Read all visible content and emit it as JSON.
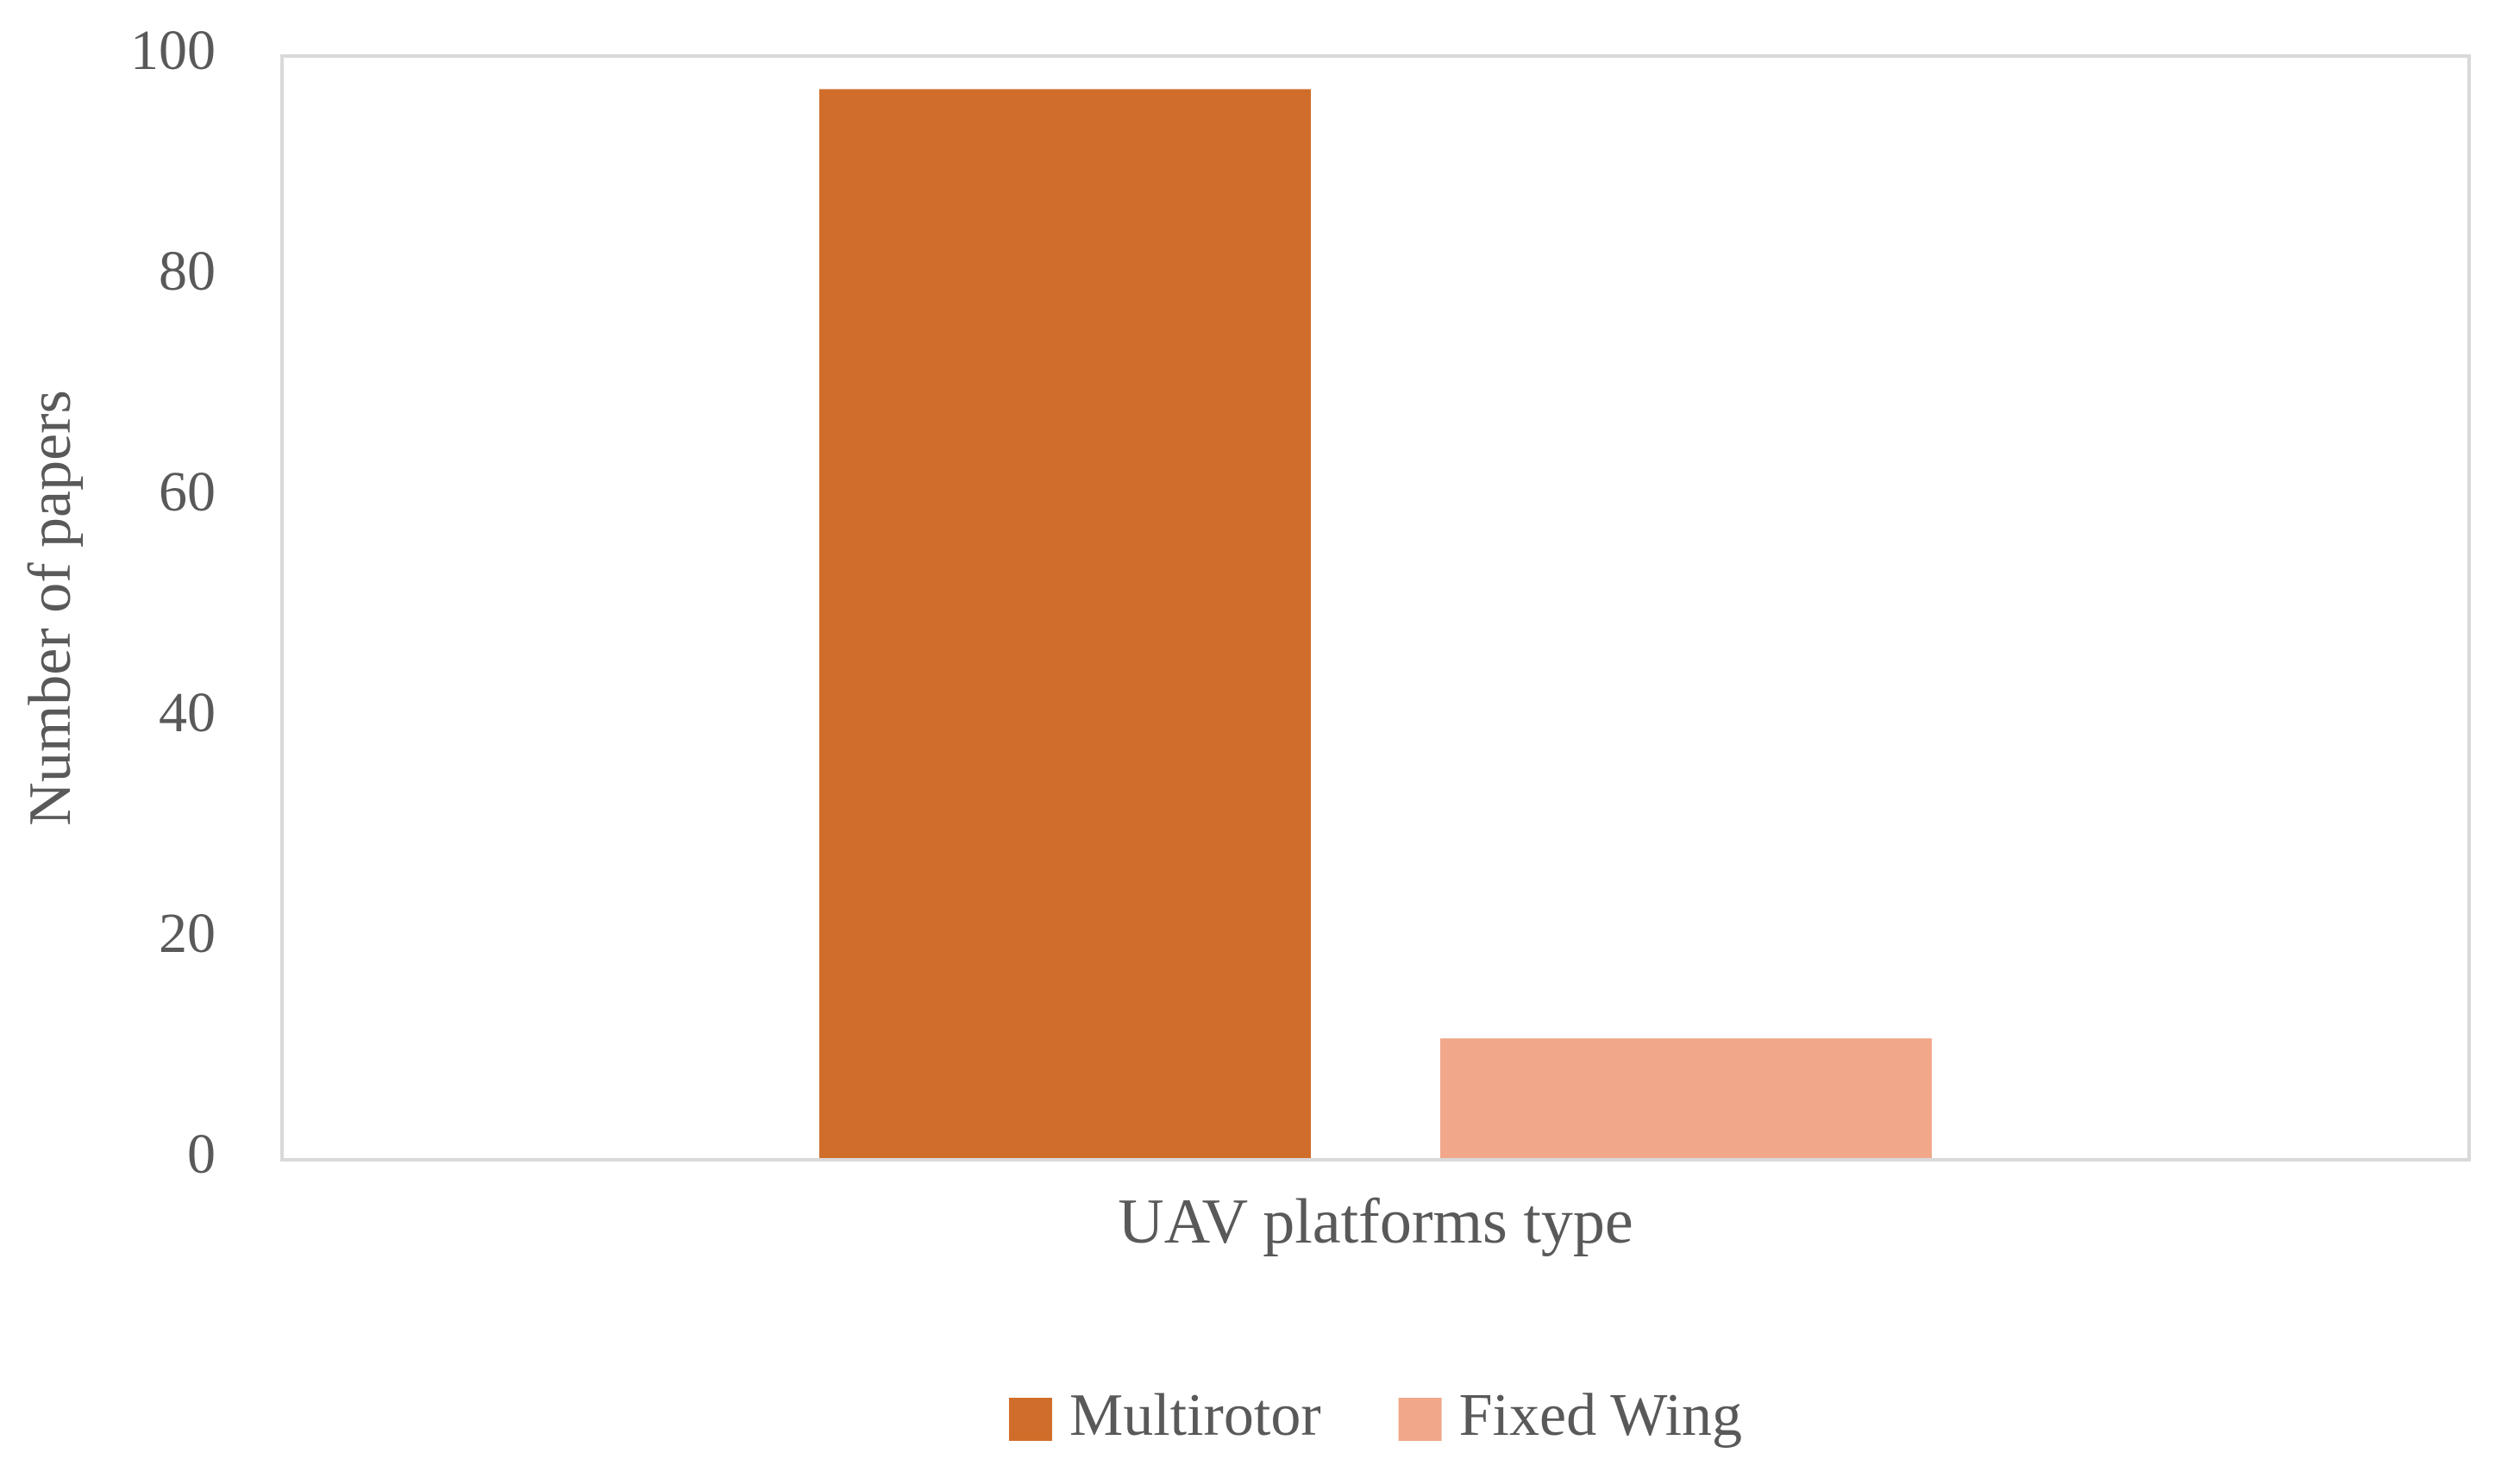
{
  "chart_data": {
    "type": "bar",
    "categories": [
      "UAV platforms type"
    ],
    "series": [
      {
        "name": "Multirotor",
        "color": "#d16d2a",
        "values": [
          97
        ]
      },
      {
        "name": "Fixed Wing",
        "color": "#f0a78a",
        "values": [
          11
        ]
      }
    ],
    "y_label": "Number of papers",
    "ylim": [
      0,
      100
    ],
    "yticks": [
      0,
      20,
      40,
      60,
      80,
      100
    ],
    "grid": false,
    "legend": "bottom"
  }
}
